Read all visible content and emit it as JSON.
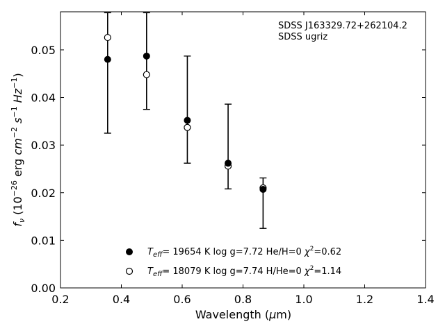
{
  "chart_data": {
    "type": "scatter",
    "xlabel": "Wavelength (μm)",
    "ylabel": "f_ν (10^-26 erg cm^-2 s^-1 Hz^-1)",
    "xlim": [
      0.2,
      1.4
    ],
    "ylim": [
      0.0,
      0.058
    ],
    "xticks": [
      0.2,
      0.4,
      0.6,
      0.8,
      1.0,
      1.2,
      1.4
    ],
    "xtick_labels": [
      "0.2",
      "0.4",
      "0.6",
      "0.8",
      "1.0",
      "1.2",
      "1.4"
    ],
    "yticks": [
      0.0,
      0.01,
      0.02,
      0.03,
      0.04,
      0.05
    ],
    "ytick_labels": [
      "0.00",
      "0.01",
      "0.02",
      "0.03",
      "0.04",
      "0.05"
    ],
    "annotations": [
      "SDSS J163329.72+262104.2",
      "SDSS ugriz"
    ],
    "observed": {
      "x": [
        0.355,
        0.483,
        0.617,
        0.751,
        0.866
      ],
      "y": [
        0.048,
        0.0487,
        0.0352,
        0.0262,
        0.0207
      ],
      "err_low": [
        0.0325,
        0.0375,
        0.0262,
        0.0208,
        0.0125
      ],
      "err_high": [
        0.0578,
        0.0578,
        0.0487,
        0.0386,
        0.0231
      ]
    },
    "series": [
      {
        "name": "T_eff= 19654 K  log g=7.72  He/H=0  χ²=0.62",
        "marker": "filled-circle",
        "x": [
          0.355,
          0.483,
          0.617,
          0.751,
          0.866
        ],
        "y": [
          0.048,
          0.0487,
          0.0352,
          0.0262,
          0.0207
        ]
      },
      {
        "name": "T_eff= 18079 K  log g=7.74  H/He=0  χ²=1.14",
        "marker": "open-circle",
        "x": [
          0.355,
          0.483,
          0.617,
          0.751,
          0.866
        ],
        "y": [
          0.0526,
          0.0448,
          0.0337,
          0.0256,
          0.021
        ]
      }
    ],
    "legend_position": "lower-center",
    "grid": false
  }
}
